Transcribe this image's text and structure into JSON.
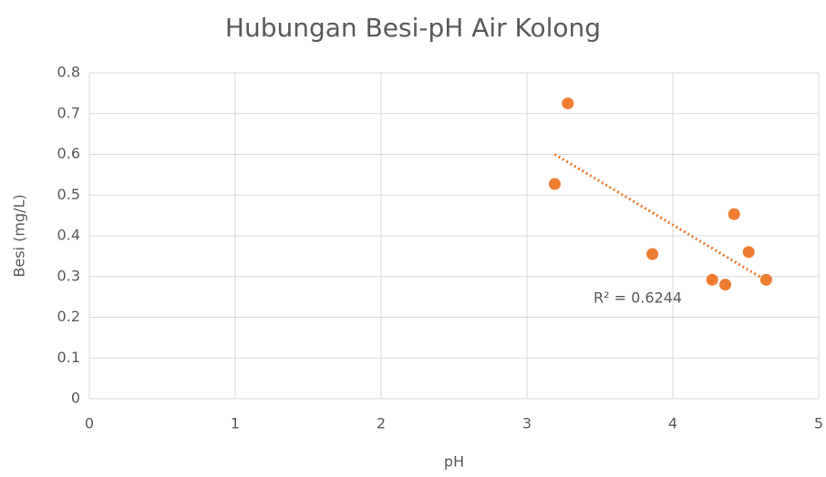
{
  "chart_data": {
    "type": "scatter",
    "title": "Hubungan Besi-pH Air Kolong",
    "x_label": "pH",
    "y_label": "Besi (mg/L)",
    "series": [
      {
        "name": "Besi",
        "color": "#ed7d31",
        "x": [
          3.28,
          3.19,
          3.86,
          4.27,
          4.36,
          4.64,
          4.52,
          4.42
        ],
        "values": [
          0.725,
          0.527,
          0.355,
          0.292,
          0.28,
          0.292,
          0.36,
          0.453
        ]
      }
    ],
    "trendline": {
      "x": [
        3.19,
        4.64
      ],
      "values": [
        0.6,
        0.29
      ],
      "color": "#ed7d31",
      "annotation": "R² = 0.6244"
    },
    "xlim": [
      0,
      5
    ],
    "xticks": [
      0,
      1,
      2,
      3,
      4,
      5
    ],
    "ylim": [
      0,
      0.8
    ],
    "yticks": [
      0,
      0.1,
      0.2,
      0.3,
      0.4,
      0.5,
      0.6,
      0.7,
      0.8
    ],
    "grid": true
  }
}
